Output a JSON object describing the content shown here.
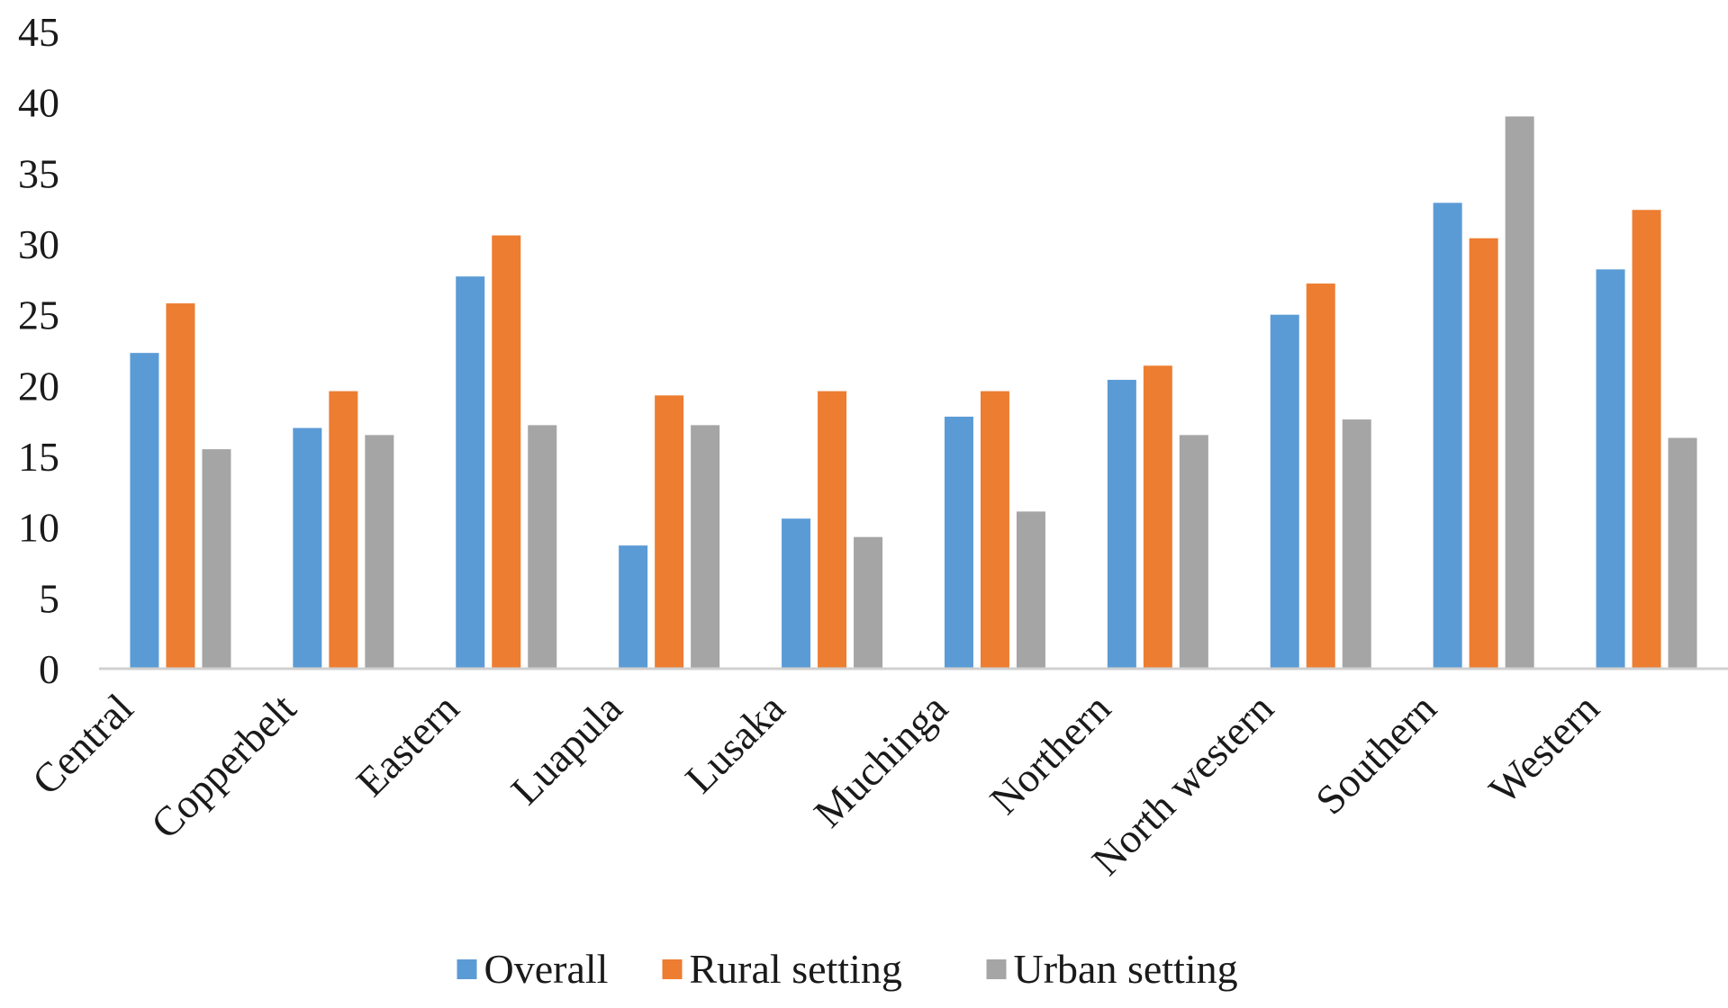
{
  "chart_data": {
    "type": "bar",
    "title": "",
    "xlabel": "",
    "ylabel": "",
    "ylim": [
      0,
      45
    ],
    "yticks": [
      0,
      5,
      10,
      15,
      20,
      25,
      30,
      35,
      40,
      45
    ],
    "grid": false,
    "legend_position": "bottom",
    "categories": [
      "Central",
      "Copperbelt",
      "Eastern",
      "Luapula",
      "Lusaka",
      "Muchinga",
      "Northern",
      "North western",
      "Southern",
      "Western"
    ],
    "series": [
      {
        "name": "Overall",
        "color": "#5b9bd5",
        "values": [
          22.3,
          17.0,
          27.7,
          8.7,
          10.6,
          17.8,
          20.4,
          25.0,
          32.9,
          28.2
        ]
      },
      {
        "name": "Rural setting",
        "color": "#ed7d31",
        "values": [
          25.8,
          19.6,
          30.6,
          19.3,
          19.6,
          19.6,
          21.4,
          27.2,
          30.4,
          32.4
        ]
      },
      {
        "name": "Urban setting",
        "color": "#a5a5a5",
        "values": [
          15.5,
          16.5,
          17.2,
          17.2,
          9.3,
          11.1,
          16.5,
          17.6,
          39.0,
          16.3
        ]
      }
    ]
  }
}
